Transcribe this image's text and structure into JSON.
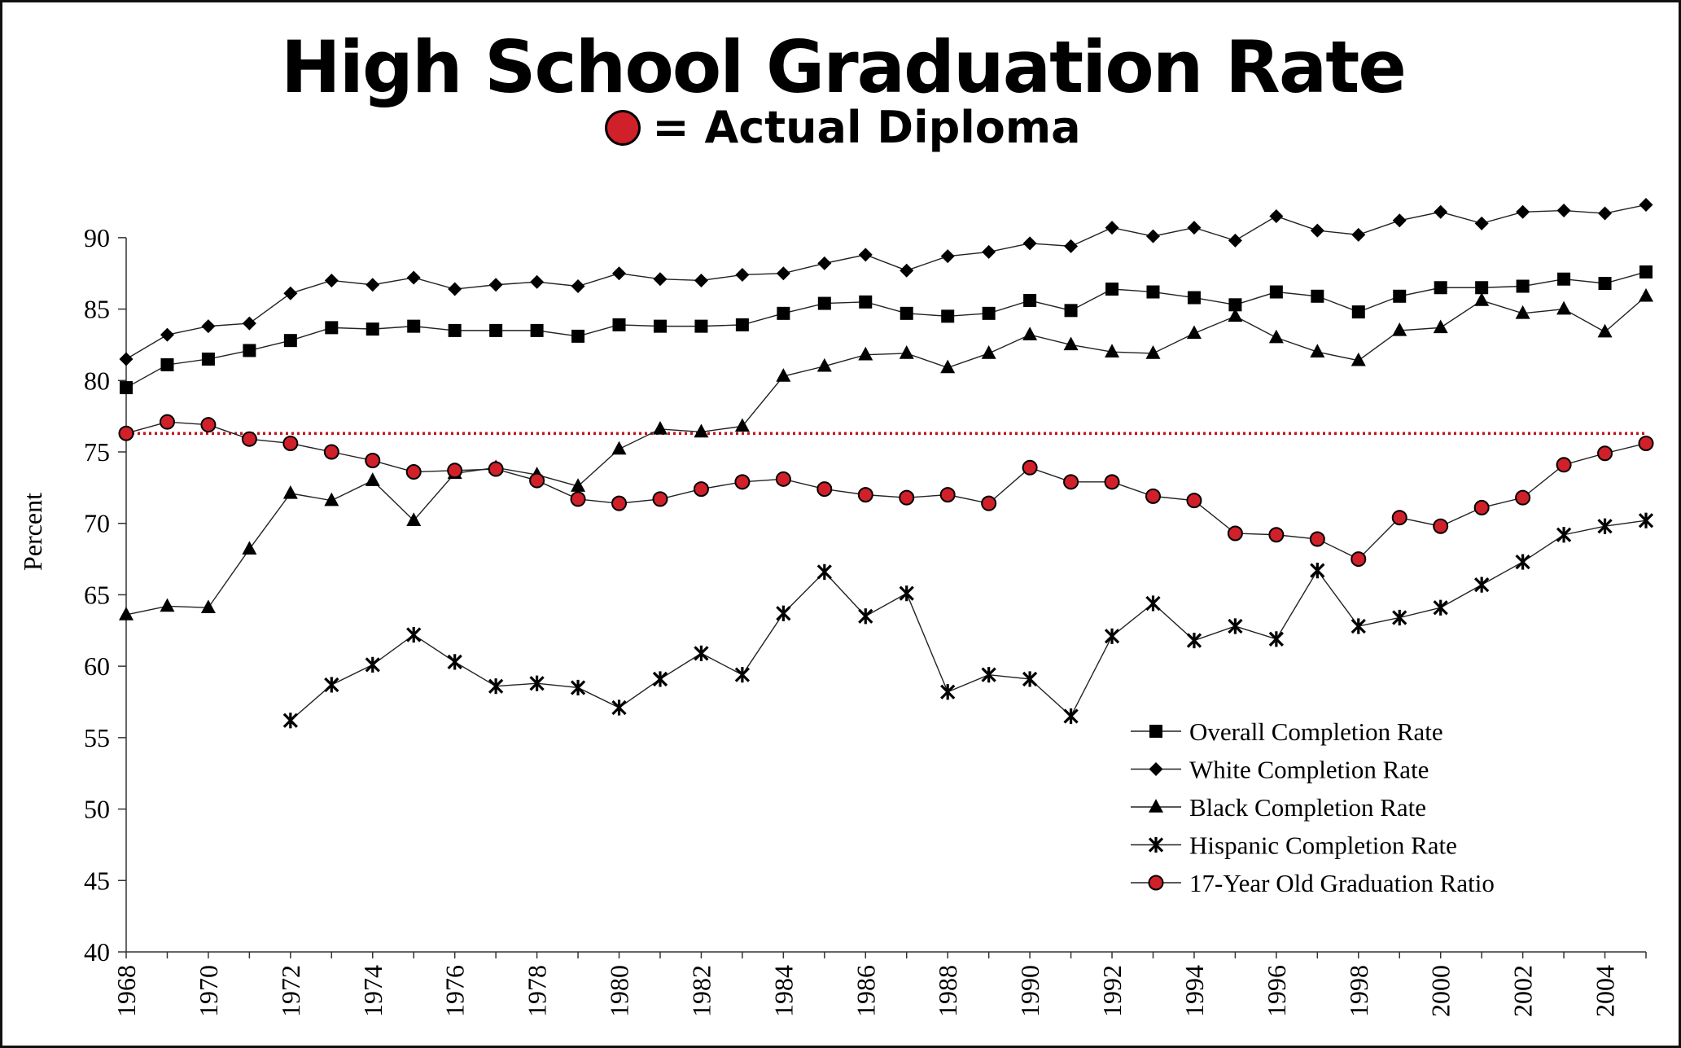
{
  "header": {
    "title": "High School Graduation Rate",
    "subtitle": "= Actual Diploma"
  },
  "chart_data": {
    "type": "line",
    "ylabel": "Percent",
    "xlabel": "",
    "ylim": [
      40,
      92.5
    ],
    "xlim": [
      1968,
      2005
    ],
    "yticks": [
      40,
      45,
      50,
      55,
      60,
      65,
      70,
      75,
      80,
      85,
      90
    ],
    "xticks": [
      1968,
      1970,
      1972,
      1974,
      1976,
      1978,
      1980,
      1982,
      1984,
      1986,
      1988,
      1990,
      1992,
      1994,
      1996,
      1998,
      2000,
      2002,
      2004
    ],
    "grid": false,
    "legend_position": "bottom-right",
    "reference_line": {
      "y": 76.3,
      "style": "dotted",
      "color": "#c0141c"
    },
    "series": [
      {
        "name": "Overall Completion Rate",
        "marker": "square",
        "color": "#000000",
        "x": [
          1968,
          1969,
          1970,
          1971,
          1972,
          1973,
          1974,
          1975,
          1976,
          1977,
          1978,
          1979,
          1980,
          1981,
          1982,
          1983,
          1984,
          1985,
          1986,
          1987,
          1988,
          1989,
          1990,
          1991,
          1992,
          1993,
          1994,
          1995,
          1996,
          1997,
          1998,
          1999,
          2000,
          2001,
          2002,
          2003,
          2004,
          2005
        ],
        "values": [
          79.5,
          81.1,
          81.5,
          82.1,
          82.8,
          83.7,
          83.6,
          83.8,
          83.5,
          83.5,
          83.5,
          83.1,
          83.9,
          83.8,
          83.8,
          83.9,
          84.7,
          85.4,
          85.5,
          84.7,
          84.5,
          84.7,
          85.6,
          84.9,
          86.4,
          86.2,
          85.8,
          85.3,
          86.2,
          85.9,
          84.8,
          85.9,
          86.5,
          86.5,
          86.6,
          87.1,
          86.8,
          87.6
        ]
      },
      {
        "name": "White Completion Rate",
        "marker": "diamond",
        "color": "#000000",
        "x": [
          1968,
          1969,
          1970,
          1971,
          1972,
          1973,
          1974,
          1975,
          1976,
          1977,
          1978,
          1979,
          1980,
          1981,
          1982,
          1983,
          1984,
          1985,
          1986,
          1987,
          1988,
          1989,
          1990,
          1991,
          1992,
          1993,
          1994,
          1995,
          1996,
          1997,
          1998,
          1999,
          2000,
          2001,
          2002,
          2003,
          2004,
          2005
        ],
        "values": [
          81.5,
          83.2,
          83.8,
          84.0,
          86.1,
          87.0,
          86.7,
          87.2,
          86.4,
          86.7,
          86.9,
          86.6,
          87.5,
          87.1,
          87.0,
          87.4,
          87.5,
          88.2,
          88.8,
          87.7,
          88.7,
          89.0,
          89.6,
          89.4,
          90.7,
          90.1,
          90.7,
          89.8,
          91.5,
          90.5,
          90.2,
          91.2,
          91.8,
          91.0,
          91.8,
          91.9,
          91.7,
          92.3
        ]
      },
      {
        "name": "Black Completion Rate",
        "marker": "triangle",
        "color": "#000000",
        "x": [
          1968,
          1969,
          1970,
          1971,
          1972,
          1973,
          1974,
          1975,
          1976,
          1977,
          1978,
          1979,
          1980,
          1981,
          1982,
          1983,
          1984,
          1985,
          1986,
          1987,
          1988,
          1989,
          1990,
          1991,
          1992,
          1993,
          1994,
          1995,
          1996,
          1997,
          1998,
          1999,
          2000,
          2001,
          2002,
          2003,
          2004,
          2005
        ],
        "values": [
          63.6,
          64.2,
          64.1,
          68.2,
          72.1,
          71.6,
          73.0,
          70.2,
          73.5,
          73.9,
          73.4,
          72.6,
          75.2,
          76.6,
          76.4,
          76.8,
          80.3,
          81.0,
          81.8,
          81.9,
          80.9,
          81.9,
          83.2,
          82.5,
          82.0,
          81.9,
          83.3,
          84.5,
          83.0,
          82.0,
          81.4,
          83.5,
          83.7,
          85.6,
          84.7,
          85.0,
          83.4,
          85.9
        ]
      },
      {
        "name": "Hispanic Completion Rate",
        "marker": "star",
        "color": "#000000",
        "x": [
          1972,
          1973,
          1974,
          1975,
          1976,
          1977,
          1978,
          1979,
          1980,
          1981,
          1982,
          1983,
          1984,
          1985,
          1986,
          1987,
          1988,
          1989,
          1990,
          1991,
          1992,
          1993,
          1994,
          1995,
          1996,
          1997,
          1998,
          1999,
          2000,
          2001,
          2002,
          2003,
          2004,
          2005
        ],
        "values": [
          56.2,
          58.7,
          60.1,
          62.2,
          60.3,
          58.6,
          58.8,
          58.5,
          57.1,
          59.1,
          60.9,
          59.4,
          63.7,
          66.6,
          63.5,
          65.1,
          58.2,
          59.4,
          59.1,
          56.5,
          62.1,
          64.4,
          61.8,
          62.8,
          61.9,
          66.7,
          62.8,
          63.4,
          64.1,
          65.7,
          67.3,
          69.2,
          69.8,
          70.2
        ]
      },
      {
        "name": "17-Year Old Graduation Ratio",
        "marker": "circle",
        "color": "#d0202a",
        "x": [
          1968,
          1969,
          1970,
          1971,
          1972,
          1973,
          1974,
          1975,
          1976,
          1977,
          1978,
          1979,
          1980,
          1981,
          1982,
          1983,
          1984,
          1985,
          1986,
          1987,
          1988,
          1989,
          1990,
          1991,
          1992,
          1993,
          1994,
          1995,
          1996,
          1997,
          1998,
          1999,
          2000,
          2001,
          2002,
          2003,
          2004,
          2005
        ],
        "values": [
          76.3,
          77.1,
          76.9,
          75.9,
          75.6,
          75.0,
          74.4,
          73.6,
          73.7,
          73.8,
          73.0,
          71.7,
          71.4,
          71.7,
          72.4,
          72.9,
          73.1,
          72.4,
          72.0,
          71.8,
          72.0,
          71.4,
          73.9,
          72.9,
          72.9,
          71.9,
          71.6,
          69.3,
          69.2,
          68.9,
          67.5,
          70.4,
          69.8,
          71.1,
          71.8,
          74.1,
          74.9,
          75.6
        ]
      }
    ]
  }
}
